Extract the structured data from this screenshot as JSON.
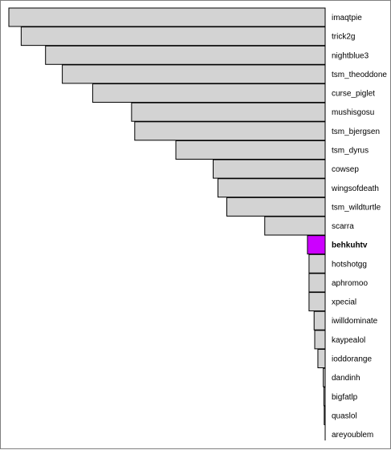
{
  "chart_data": {
    "type": "bar",
    "orientation": "horizontal",
    "direction": "right-to-left",
    "categories": [
      "imaqtpie",
      "trick2g",
      "nightblue3",
      "tsm_theoddone",
      "curse_piglet",
      "mushisgosu",
      "tsm_bjergsen",
      "tsm_dyrus",
      "cowsep",
      "wingsofdeath",
      "tsm_wildturtle",
      "scarra",
      "behkuhtv",
      "hotshotgg",
      "aphromoo",
      "xpecial",
      "iwilldominate",
      "kaypealol",
      "ioddorange",
      "dandinh",
      "bigfatlp",
      "quaslol",
      "areyoublem"
    ],
    "values": [
      100,
      96.1,
      88.4,
      83.1,
      73.5,
      61.2,
      60.2,
      47.2,
      35.4,
      33.9,
      31.1,
      19.1,
      5.6,
      5.1,
      5.1,
      5.1,
      3.5,
      3.3,
      2.3,
      0.6,
      0.4,
      0.3,
      0
    ],
    "highlight": "behkuhtv",
    "bar_color": "#d3d3d3",
    "highlight_color": "#cc00ff",
    "grid": false,
    "legend": "none"
  }
}
